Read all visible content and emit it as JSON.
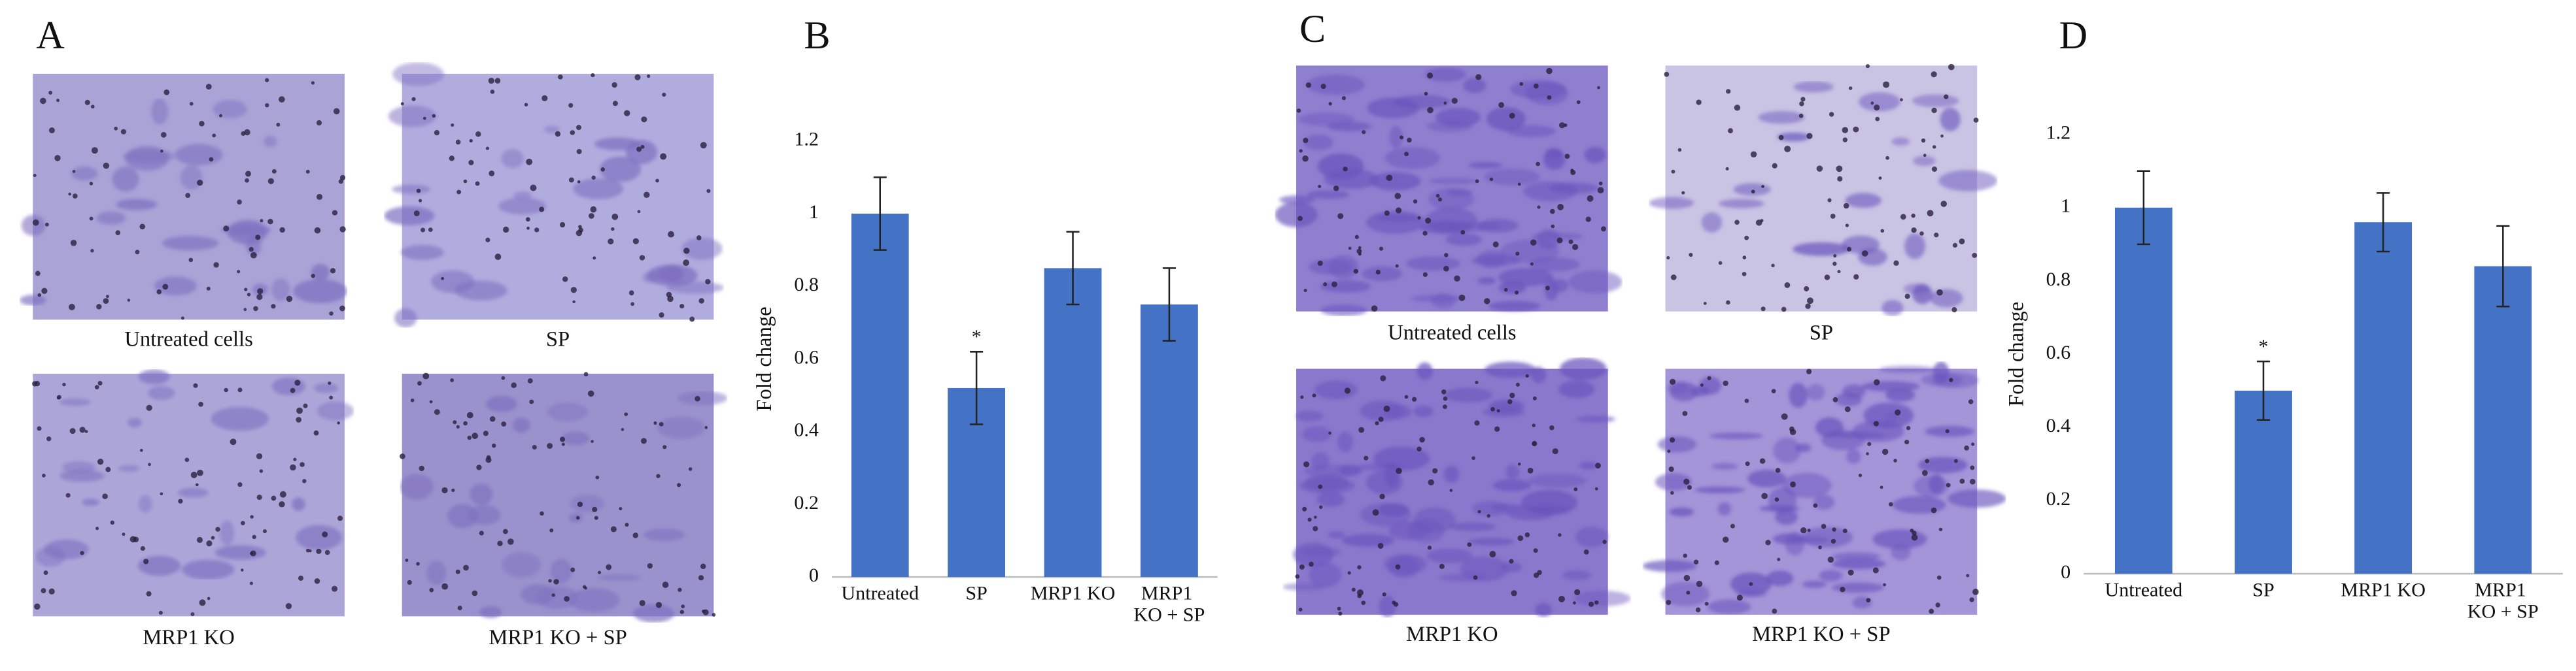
{
  "panel_labels": [
    "A",
    "C"
  ],
  "micrographs": [
    {
      "captions": [
        "Untreated cells",
        "SP",
        "MRP1 KO",
        "MRP1 KO + SP"
      ]
    },
    {
      "captions": [
        "Untreated cells",
        "SP",
        "MRP1 KO",
        "MRP1 KO + SP"
      ]
    }
  ],
  "chart_data": [
    {
      "type": "bar",
      "label": "B",
      "y_label": "Fold change",
      "categories": [
        "Untreated",
        "SP",
        "MRP1 KO",
        "MRP1 KO + SP"
      ],
      "values": [
        1,
        0.52,
        0.85,
        0.75
      ],
      "errors": [
        0.1,
        0.1,
        0.1,
        0.1
      ],
      "significance": [
        null,
        "*",
        null,
        null
      ],
      "color": "#4472c4",
      "ylim": [
        0,
        1.2
      ],
      "yticks": [
        0,
        0.2,
        0.4,
        0.6,
        0.8,
        1,
        1.2
      ]
    },
    {
      "type": "bar",
      "label": "D",
      "y_label": "Fold change",
      "categories": [
        "Untreated",
        "SP",
        "MRP1 KO",
        "MRP1 KO + SP"
      ],
      "values": [
        1,
        0.5,
        0.96,
        0.84
      ],
      "errors": [
        0.1,
        0.08,
        0.08,
        0.11
      ],
      "significance": [
        null,
        "*",
        null,
        null
      ],
      "color": "#4472c4",
      "ylim": [
        0,
        1.2
      ],
      "yticks": [
        0,
        0.2,
        0.4,
        0.6,
        0.8,
        1,
        1.2
      ]
    }
  ]
}
